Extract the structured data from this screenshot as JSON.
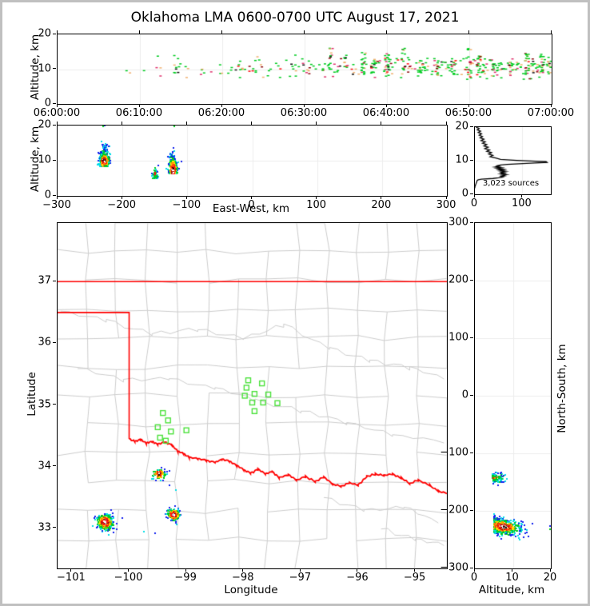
{
  "title": "Oklahoma LMA 0600-0700 UTC August 17, 2021",
  "frame_color": "#c0c0c0",
  "palette": {
    "blue": "#1322ee",
    "cyan": "#00dde6",
    "green": "#00cc22",
    "yellow": "#ffe200",
    "orange": "#ff9100",
    "tan": "#f0b070",
    "crimson": "#e0336e",
    "red": "#ff1111",
    "darkred": "#8f0f12",
    "black": "#101010",
    "white": "#ffffff",
    "gray": "#b8b8b8",
    "station_green": "#4ce13c",
    "state_border_red": "#ff0000",
    "county_gray": "#cccccc",
    "grid_gray": "#ededed"
  },
  "chart_data": {
    "time_height": {
      "type": "scatter",
      "xlabel": "",
      "ylabel": "Altitude, km",
      "xlim": [
        0,
        3600
      ],
      "ylim": [
        0,
        20
      ],
      "xticks": [
        {
          "v": 0,
          "label": "06:00:00"
        },
        {
          "v": 600,
          "label": "06:10:00"
        },
        {
          "v": 1200,
          "label": "06:20:00"
        },
        {
          "v": 1800,
          "label": "06:30:00"
        },
        {
          "v": 2400,
          "label": "06:40:00"
        },
        {
          "v": 3000,
          "label": "06:50:00"
        },
        {
          "v": 3600,
          "label": "07:00:00"
        }
      ],
      "yticks": [
        {
          "v": 0,
          "label": "0"
        },
        {
          "v": 10,
          "label": "10"
        },
        {
          "v": 20,
          "label": "20"
        }
      ],
      "background": {
        "count": 280,
        "t_start": 480,
        "t_span": 3120,
        "t_power": 0.62,
        "y_mean": 10.4,
        "y_sd": 1.5
      },
      "bursts": [
        [
          1990,
          14,
          9,
          16.5
        ],
        [
          2100,
          10,
          9,
          14
        ],
        [
          2230,
          16,
          8.5,
          15
        ],
        [
          2300,
          12,
          8.5,
          13
        ],
        [
          2400,
          22,
          7.5,
          14.5
        ],
        [
          2520,
          14,
          8.5,
          16
        ],
        [
          2650,
          12,
          8,
          13.5
        ],
        [
          2760,
          14,
          8,
          12.5
        ],
        [
          2880,
          10,
          8.5,
          13
        ],
        [
          3000,
          20,
          7,
          16.5
        ],
        [
          3070,
          18,
          7.5,
          14
        ],
        [
          3180,
          10,
          8.5,
          12
        ],
        [
          3300,
          12,
          8,
          13
        ],
        [
          3420,
          18,
          7,
          15
        ],
        [
          3530,
          16,
          7.5,
          14.5
        ],
        [
          3580,
          12,
          8,
          13.5
        ]
      ],
      "color_weights": [
        [
          "green",
          0.58
        ],
        [
          "tan",
          0.17
        ],
        [
          "crimson",
          0.1
        ],
        [
          "red",
          0.06
        ],
        [
          "black",
          0.05
        ],
        [
          "darkred",
          0.04
        ]
      ]
    },
    "ew_height": {
      "type": "scatter",
      "xlabel": "East-West, km",
      "ylabel": "Altitude, km",
      "xlim": [
        -300,
        300
      ],
      "ylim": [
        0,
        20
      ],
      "xticks": [
        {
          "v": -300,
          "label": "−300"
        },
        {
          "v": -200,
          "label": "−200"
        },
        {
          "v": -100,
          "label": "−100"
        },
        {
          "v": 0,
          "label": "0"
        },
        {
          "v": 100,
          "label": "100"
        },
        {
          "v": 200,
          "label": "200"
        },
        {
          "v": 300,
          "label": "300"
        }
      ],
      "yticks": [
        {
          "v": 0,
          "label": "0"
        },
        {
          "v": 10,
          "label": "10"
        },
        {
          "v": 20,
          "label": "20"
        }
      ],
      "clusters": [
        {
          "cx": -228,
          "sx": 3.6,
          "base": 8.3,
          "half": 2.35,
          "cy": 10.0,
          "sy": 1.5,
          "n": 430,
          "palette": "full"
        },
        {
          "cx": -150,
          "sx": 2.2,
          "base": 4.9,
          "half": 1.15,
          "cy": 6.2,
          "sy": 1.6,
          "n": 75,
          "palette": "cool"
        },
        {
          "cx": -122,
          "sx": 3.0,
          "base": 6.3,
          "half": 2.3,
          "cy": 7.3,
          "sy": 2.2,
          "n": 400,
          "palette": "full"
        }
      ],
      "strays": [
        [
          -230,
          19.8,
          "green"
        ],
        [
          -227,
          19.9,
          "blue"
        ],
        [
          -120,
          19.85,
          "green"
        ]
      ]
    },
    "alt_histogram": {
      "type": "line",
      "annotation": "3,023 sources",
      "xlim": [
        0,
        160
      ],
      "ylim": [
        0,
        20
      ],
      "xticks": [
        {
          "v": 0,
          "label": "0"
        },
        {
          "v": 100,
          "label": "100"
        }
      ],
      "yticks": [
        {
          "v": 0,
          "label": "0"
        },
        {
          "v": 10,
          "label": "10"
        },
        {
          "v": 20,
          "label": "20"
        }
      ],
      "profile_alt_km": [
        20,
        19.6,
        19.2,
        18.8,
        18.4,
        18.0,
        17.6,
        17.2,
        16.8,
        16.4,
        16.0,
        15.6,
        15.2,
        14.8,
        14.4,
        14.0,
        13.6,
        13.2,
        12.8,
        12.4,
        12.0,
        11.6,
        11.2,
        10.8,
        10.4,
        10.1,
        9.9,
        9.7,
        9.5,
        9.3,
        9.1,
        8.9,
        8.7,
        8.5,
        8.3,
        8.1,
        7.9,
        7.7,
        7.5,
        7.3,
        7.1,
        6.9,
        6.7,
        6.5,
        6.3,
        6.1,
        5.9,
        5.7,
        5.5,
        5.3,
        5.1,
        4.9,
        4.7,
        4.5,
        4.3,
        4.1,
        3.8,
        3.4,
        3.0,
        2.6,
        2.2,
        1.8
      ],
      "profile_counts": [
        2,
        9,
        5,
        12,
        7,
        14,
        9,
        16,
        11,
        19,
        13,
        22,
        16,
        25,
        19,
        28,
        21,
        31,
        25,
        35,
        29,
        38,
        32,
        44,
        54,
        88,
        118,
        150,
        152,
        126,
        92,
        68,
        54,
        47,
        52,
        43,
        56,
        47,
        60,
        51,
        62,
        54,
        65,
        56,
        62,
        54,
        66,
        57,
        63,
        55,
        59,
        50,
        38,
        14,
        7,
        5,
        4,
        3,
        2,
        1,
        0,
        0
      ]
    },
    "plan_map": {
      "type": "scatter",
      "xlabel": "Longitude",
      "ylabel": "Latitude",
      "xlim": [
        -101.25,
        -94.45
      ],
      "ylim": [
        32.35,
        37.95
      ],
      "xticks": [
        {
          "v": -101,
          "label": "−101"
        },
        {
          "v": -100,
          "label": "−100"
        },
        {
          "v": -99,
          "label": "−99"
        },
        {
          "v": -98,
          "label": "−98"
        },
        {
          "v": -97,
          "label": "−97"
        },
        {
          "v": -96,
          "label": "−96"
        },
        {
          "v": -95,
          "label": "−95"
        }
      ],
      "yticks": [
        {
          "v": 33,
          "label": "33"
        },
        {
          "v": 34,
          "label": "34"
        },
        {
          "v": 35,
          "label": "35"
        },
        {
          "v": 36,
          "label": "36"
        },
        {
          "v": 37,
          "label": "37"
        }
      ],
      "state_borders": {
        "kansas_lat": 37.0,
        "panhandle_lat": 36.5,
        "panhandle_lon": -100.0,
        "red_river": [
          [
            -100.0,
            34.45
          ],
          [
            -99.9,
            34.41
          ],
          [
            -99.8,
            34.44
          ],
          [
            -99.7,
            34.38
          ],
          [
            -99.6,
            34.41
          ],
          [
            -99.5,
            34.36
          ],
          [
            -99.38,
            34.4
          ],
          [
            -99.25,
            34.35
          ],
          [
            -99.15,
            34.25
          ],
          [
            -99.05,
            34.21
          ],
          [
            -98.95,
            34.15
          ],
          [
            -98.8,
            34.13
          ],
          [
            -98.65,
            34.1
          ],
          [
            -98.5,
            34.07
          ],
          [
            -98.38,
            34.12
          ],
          [
            -98.25,
            34.09
          ],
          [
            -98.12,
            34.02
          ],
          [
            -98.0,
            33.95
          ],
          [
            -97.88,
            33.89
          ],
          [
            -97.75,
            33.96
          ],
          [
            -97.62,
            33.88
          ],
          [
            -97.5,
            33.92
          ],
          [
            -97.38,
            33.82
          ],
          [
            -97.22,
            33.87
          ],
          [
            -97.08,
            33.78
          ],
          [
            -96.92,
            33.84
          ],
          [
            -96.75,
            33.76
          ],
          [
            -96.6,
            33.83
          ],
          [
            -96.45,
            33.72
          ],
          [
            -96.3,
            33.68
          ],
          [
            -96.15,
            33.74
          ],
          [
            -96.0,
            33.7
          ],
          [
            -95.85,
            33.84
          ],
          [
            -95.7,
            33.88
          ],
          [
            -95.55,
            33.86
          ],
          [
            -95.4,
            33.88
          ],
          [
            -95.25,
            33.82
          ],
          [
            -95.1,
            33.72
          ],
          [
            -94.95,
            33.78
          ],
          [
            -94.75,
            33.7
          ],
          [
            -94.6,
            33.6
          ],
          [
            -94.45,
            33.57
          ]
        ]
      },
      "stations": [
        [
          -97.92,
          35.4
        ],
        [
          -97.68,
          35.35
        ],
        [
          -97.95,
          35.28
        ],
        [
          -97.81,
          35.18
        ],
        [
          -97.98,
          35.15
        ],
        [
          -97.57,
          35.17
        ],
        [
          -97.85,
          35.04
        ],
        [
          -97.66,
          35.04
        ],
        [
          -97.41,
          35.03
        ],
        [
          -97.81,
          34.9
        ],
        [
          -99.41,
          34.87
        ],
        [
          -99.32,
          34.75
        ],
        [
          -99.5,
          34.64
        ],
        [
          -99.27,
          34.57
        ],
        [
          -99.0,
          34.59
        ],
        [
          -99.46,
          34.47
        ],
        [
          -99.36,
          34.42
        ]
      ],
      "clusters": [
        {
          "clon": -100.42,
          "clat": 33.1,
          "s": 0.075,
          "n": 340
        },
        {
          "clon": -99.22,
          "clat": 33.22,
          "s": 0.055,
          "n": 210
        },
        {
          "clon": -99.47,
          "clat": 33.88,
          "s": 0.05,
          "n": 95
        }
      ],
      "strays": [
        [
          -100.55,
          33.02,
          "blue"
        ],
        [
          -100.47,
          32.94,
          "blue"
        ],
        [
          -100.36,
          32.89,
          "cyan"
        ],
        [
          -99.74,
          32.94,
          "cyan"
        ],
        [
          -99.55,
          32.92,
          "blue"
        ],
        [
          -99.4,
          33.77,
          "blue"
        ],
        [
          -99.29,
          33.7,
          "blue"
        ],
        [
          -99.18,
          33.62,
          "cyan"
        ]
      ]
    },
    "ns_height": {
      "type": "scatter",
      "xlabel": "Altitude, km",
      "ylabel": "North-South, km",
      "xlim": [
        0,
        20
      ],
      "ylim": [
        -300,
        300
      ],
      "xticks": [
        {
          "v": 0,
          "label": "0"
        },
        {
          "v": 10,
          "label": "10"
        },
        {
          "v": 20,
          "label": "20"
        }
      ],
      "yticks": [
        {
          "v": 300,
          "label": "300"
        },
        {
          "v": 200,
          "label": "200"
        },
        {
          "v": 100,
          "label": "100"
        },
        {
          "v": 0,
          "label": "0"
        },
        {
          "v": -100,
          "label": "−100"
        },
        {
          "v": -200,
          "label": "−200"
        },
        {
          "v": -300,
          "label": "−300"
        }
      ],
      "clusters": [
        {
          "cns": -227,
          "sns": 6.5,
          "base": 5.0,
          "half": 3.3,
          "tilt": 0.9,
          "cy": 7.5,
          "dref": [
            11,
            4.2
          ],
          "n": 640,
          "palette": "full"
        },
        {
          "cns": -143,
          "sns": 4.2,
          "base": 4.6,
          "half": 1.5,
          "tilt": 0,
          "cy": 5.5,
          "dref": [
            8,
            2.2
          ],
          "n": 95,
          "palette": "cool"
        }
      ],
      "strays": [
        [
          19.7,
          -226,
          "blue"
        ],
        [
          19.85,
          -232,
          "green"
        ]
      ]
    }
  }
}
